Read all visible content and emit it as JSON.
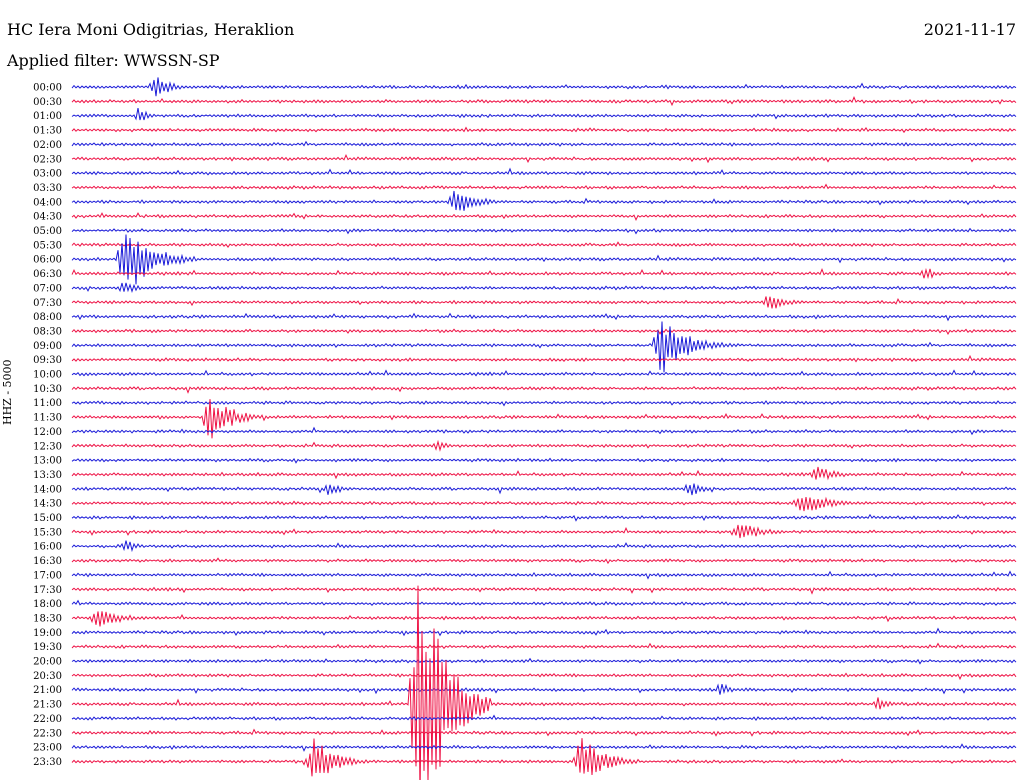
{
  "header": {
    "station": "HC Iera Moni Odigitrias, Heraklion",
    "date": "2021-11-17",
    "filter": "Applied filter: WWSSN-SP",
    "channel_label": "HHZ - 5000"
  },
  "colors": {
    "trace_a": "#1a1ad8",
    "trace_b": "#ee1144"
  },
  "chart_data": {
    "type": "line",
    "title": "HC Iera Moni Odigitrias, Heraklion",
    "ylabel": "HHZ - 5000",
    "grid": false,
    "legend": "none",
    "tick_labels": [
      "00:00",
      "00:30",
      "01:00",
      "01:30",
      "02:00",
      "02:30",
      "03:00",
      "03:30",
      "04:00",
      "04:30",
      "05:00",
      "05:30",
      "06:00",
      "06:30",
      "07:00",
      "07:30",
      "08:00",
      "08:30",
      "09:00",
      "09:30",
      "10:00",
      "10:30",
      "11:00",
      "11:30",
      "12:00",
      "12:30",
      "13:00",
      "13:30",
      "14:00",
      "14:30",
      "15:00",
      "15:30",
      "16:00",
      "16:30",
      "17:00",
      "17:30",
      "18:00",
      "18:30",
      "19:00",
      "19:30",
      "20:00",
      "20:30",
      "21:00",
      "21:30",
      "22:00",
      "22:30",
      "23:00",
      "23:30"
    ],
    "x_range_minutes": [
      0,
      30
    ],
    "events": [
      {
        "row": "00:00",
        "minute": 2.5,
        "amplitude": 12,
        "duration": 1.5
      },
      {
        "row": "01:00",
        "minute": 2.0,
        "amplitude": 8,
        "duration": 1.0
      },
      {
        "row": "04:00",
        "minute": 12.0,
        "amplitude": 14,
        "duration": 2.0
      },
      {
        "row": "06:00",
        "minute": 1.5,
        "amplitude": 38,
        "duration": 2.5
      },
      {
        "row": "06:30",
        "minute": 27.0,
        "amplitude": 8,
        "duration": 1.0
      },
      {
        "row": "07:00",
        "minute": 1.5,
        "amplitude": 10,
        "duration": 1.0
      },
      {
        "row": "07:30",
        "minute": 22.0,
        "amplitude": 10,
        "duration": 1.5
      },
      {
        "row": "09:00",
        "minute": 18.5,
        "amplitude": 30,
        "duration": 2.5
      },
      {
        "row": "11:30",
        "minute": 4.2,
        "amplitude": 26,
        "duration": 2.0
      },
      {
        "row": "12:30",
        "minute": 11.5,
        "amplitude": 7,
        "duration": 1.0
      },
      {
        "row": "13:30",
        "minute": 23.5,
        "amplitude": 8,
        "duration": 2.0
      },
      {
        "row": "14:00",
        "minute": 8.0,
        "amplitude": 9,
        "duration": 1.0
      },
      {
        "row": "14:00",
        "minute": 19.5,
        "amplitude": 9,
        "duration": 1.2
      },
      {
        "row": "14:30",
        "minute": 23.0,
        "amplitude": 12,
        "duration": 2.5
      },
      {
        "row": "15:30",
        "minute": 21.0,
        "amplitude": 11,
        "duration": 2.0
      },
      {
        "row": "16:00",
        "minute": 1.6,
        "amplitude": 8,
        "duration": 1.0
      },
      {
        "row": "18:30",
        "minute": 0.6,
        "amplitude": 9,
        "duration": 2.5
      },
      {
        "row": "21:00",
        "minute": 20.5,
        "amplitude": 8,
        "duration": 1.0
      },
      {
        "row": "21:30",
        "minute": 10.8,
        "amplitude": 150,
        "duration": 2.5
      },
      {
        "row": "21:30",
        "minute": 25.5,
        "amplitude": 8,
        "duration": 1.0
      },
      {
        "row": "23:30",
        "minute": 7.5,
        "amplitude": 24,
        "duration": 2.0
      },
      {
        "row": "23:30",
        "minute": 16.0,
        "amplitude": 28,
        "duration": 2.0
      }
    ]
  }
}
